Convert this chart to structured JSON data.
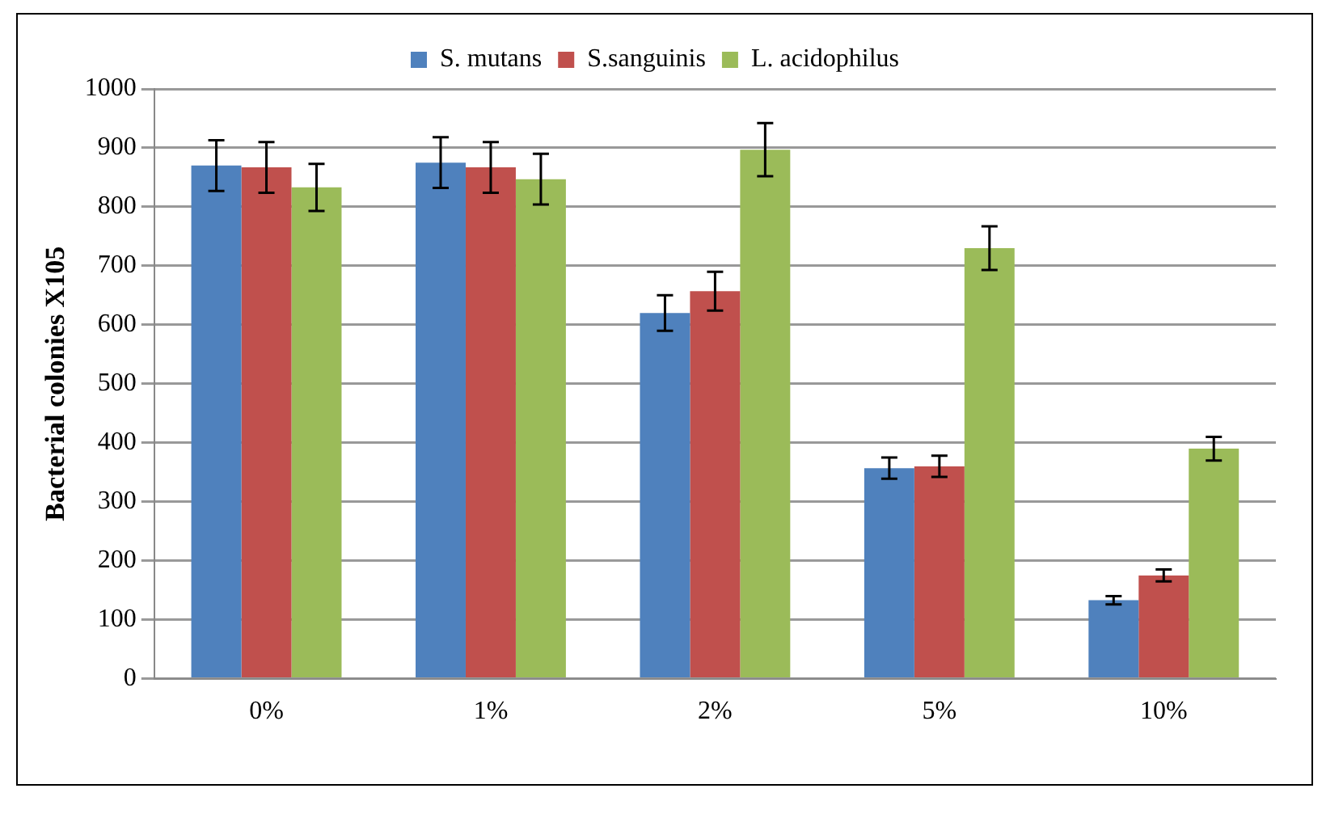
{
  "chart_data": {
    "type": "bar",
    "ylabel": "Bacterial colonies X105",
    "categories": [
      "0%",
      "1%",
      "2%",
      "5%",
      "10%"
    ],
    "series": [
      {
        "name": "S. mutans",
        "color": "#4f81bd",
        "values": [
          870,
          875,
          620,
          357,
          133
        ],
        "errors": [
          43,
          43,
          30,
          18,
          7
        ]
      },
      {
        "name": "S.sanguinis",
        "color": "#c0504d",
        "values": [
          867,
          867,
          657,
          360,
          175
        ],
        "errors": [
          43,
          43,
          33,
          18,
          10
        ]
      },
      {
        "name": "L. acidophilus",
        "color": "#9bbb59",
        "values": [
          833,
          847,
          897,
          730,
          390
        ],
        "errors": [
          40,
          43,
          45,
          37,
          20
        ]
      }
    ],
    "ylim": [
      0,
      1000
    ],
    "yticks": [
      0,
      100,
      200,
      300,
      400,
      500,
      600,
      700,
      800,
      900,
      1000
    ],
    "grid": "y",
    "legend": "top"
  }
}
